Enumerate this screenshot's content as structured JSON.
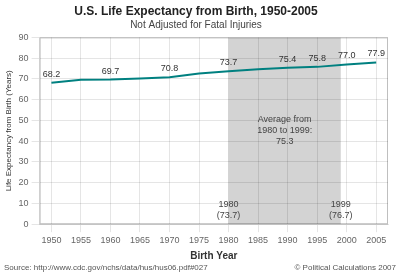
{
  "chart_data": {
    "type": "line",
    "title": "U.S. Life Expectancy from Birth, 1950-2005",
    "subtitle": "Not Adjusted for Fatal Injuries",
    "xlabel": "Birth Year",
    "ylabel": "Life Expectancy from Birth (Years)",
    "source": "Source: http://www.cdc.gov/nchs/data/hus/hus06.pdf#027",
    "copyright": "© Political Calculations 2007",
    "x": [
      1950,
      1955,
      1960,
      1965,
      1970,
      1975,
      1980,
      1985,
      1990,
      1995,
      2000,
      2005
    ],
    "values": [
      68.2,
      69.6,
      69.7,
      70.2,
      70.8,
      72.6,
      73.7,
      74.7,
      75.4,
      75.8,
      77.0,
      77.9
    ],
    "color": "#008080",
    "data_labels": true,
    "value_labels": [
      "68.2",
      null,
      "69.7",
      null,
      "70.8",
      null,
      "73.7",
      null,
      "75.4",
      "75.8",
      "77.0",
      "77.9"
    ],
    "xlim": [
      1948,
      2007
    ],
    "xticks": [
      1950,
      1955,
      1960,
      1965,
      1970,
      1975,
      1980,
      1985,
      1990,
      1995,
      2000,
      2005
    ],
    "ylim": [
      0,
      90
    ],
    "yticks": [
      0,
      10,
      20,
      30,
      40,
      50,
      60,
      70,
      80,
      90
    ],
    "grid": true,
    "shaded_ranges": [
      {
        "x": [
          1980,
          1999
        ],
        "color": "#d3d3d3"
      }
    ],
    "annotations": [
      {
        "text": "Average from\n1980 to 1999:\n75.3",
        "x": 1989.5,
        "y": 45
      },
      {
        "text": "1980\n(73.7)",
        "x": 1980,
        "y": 7
      },
      {
        "text": "1999\n(76.7)",
        "x": 1999,
        "y": 7
      }
    ]
  }
}
